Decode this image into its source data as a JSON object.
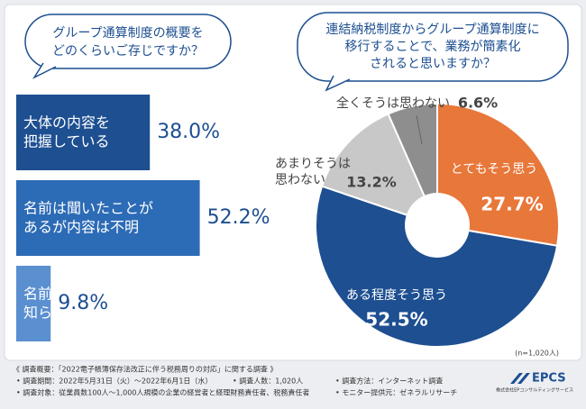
{
  "chart_data": [
    {
      "type": "bar",
      "orientation": "horizontal",
      "title": [
        "グループ通算制度の概要を",
        "どのくらいご存じですか？"
      ],
      "categories": [
        [
          "大体の内容を",
          "把握している"
        ],
        [
          "名前は聞いたことが",
          "あるが内容は不明"
        ],
        [
          "名前も内容も",
          "知らなかった"
        ]
      ],
      "values": [
        38.0,
        52.2,
        9.8
      ],
      "value_labels": [
        "38.0%",
        "52.2%",
        "9.8%"
      ],
      "colors": [
        "#1d4f91",
        "#2c6bb6",
        "#5a8fd0"
      ]
    },
    {
      "type": "pie",
      "donut": true,
      "title": [
        "連結納税制度からグループ通算制度に",
        "移行することで、業務が簡素化",
        "されると思いますか？"
      ],
      "categories": [
        [
          "とてもそう思う"
        ],
        [
          "ある程度そう思う"
        ],
        [
          "あまりそうは",
          "思わない"
        ],
        [
          "全くそうは思わない"
        ]
      ],
      "values": [
        27.7,
        52.5,
        13.2,
        6.6
      ],
      "value_labels": [
        "27.7%",
        "52.5%",
        "13.2%",
        "6.6%"
      ],
      "colors": [
        "#e8773a",
        "#1d4f91",
        "#c8c8c8",
        "#8e8e8e"
      ],
      "note": "(n=1,020人)"
    }
  ],
  "footer": {
    "heading": "《 調査概要：「2022電子帳簿保存法改正に伴う税務周りの対応」に関する調査 》",
    "items": [
      "• 調査期間：2022年5月31日（火）〜2022年6月1日（水）",
      "• 調査人数：1,020人",
      "• 調査方法：インターネット調査",
      "• 調査対象：従業員数100人〜1,000人規模の企業の経営者と経理財務責任者、税務責任者",
      "• モニター提供元：ゼネラルリサーチ"
    ]
  },
  "logo": {
    "name": "EPCS",
    "company": "株式会社EPコンサルティングサービス"
  }
}
